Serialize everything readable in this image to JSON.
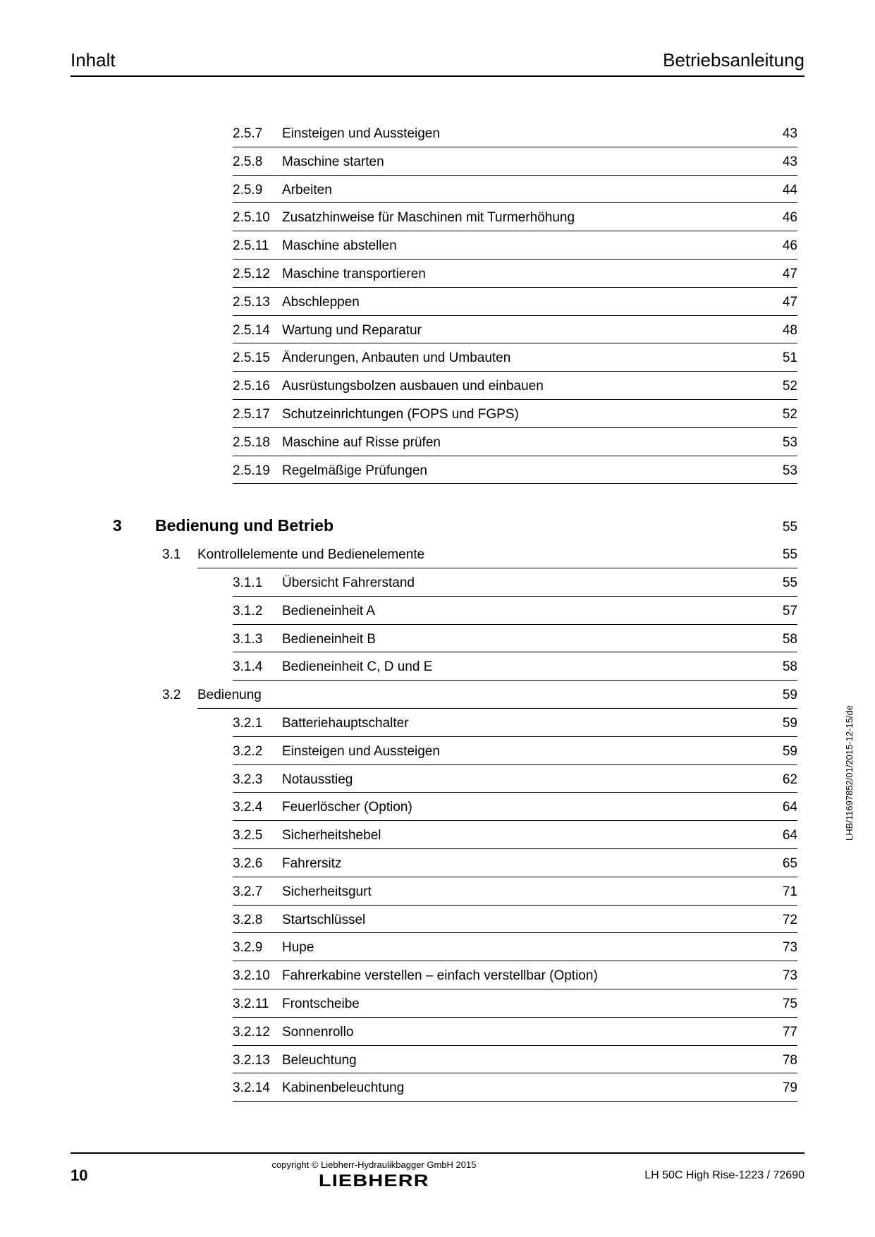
{
  "header": {
    "left": "Inhalt",
    "right": "Betriebsanleitung"
  },
  "toc": [
    {
      "type": "sub",
      "num": "2.5.7",
      "title": "Einsteigen und Aussteigen",
      "page": "43"
    },
    {
      "type": "sub",
      "num": "2.5.8",
      "title": "Maschine starten",
      "page": "43"
    },
    {
      "type": "sub",
      "num": "2.5.9",
      "title": "Arbeiten",
      "page": "44"
    },
    {
      "type": "sub",
      "num": "2.5.10",
      "title": "Zusatzhinweise für Maschinen mit Turmerhöhung",
      "page": "46"
    },
    {
      "type": "sub",
      "num": "2.5.11",
      "title": "Maschine abstellen",
      "page": "46"
    },
    {
      "type": "sub",
      "num": "2.5.12",
      "title": "Maschine transportieren",
      "page": "47"
    },
    {
      "type": "sub",
      "num": "2.5.13",
      "title": "Abschleppen",
      "page": "47"
    },
    {
      "type": "sub",
      "num": "2.5.14",
      "title": "Wartung und Reparatur",
      "page": "48"
    },
    {
      "type": "sub",
      "num": "2.5.15",
      "title": "Änderungen, Anbauten und Umbauten",
      "page": "51"
    },
    {
      "type": "sub",
      "num": "2.5.16",
      "title": "Ausrüstungsbolzen ausbauen und einbauen",
      "page": "52"
    },
    {
      "type": "sub",
      "num": "2.5.17",
      "title": "Schutzeinrichtungen (FOPS und FGPS)",
      "page": "52"
    },
    {
      "type": "sub",
      "num": "2.5.18",
      "title": "Maschine auf Risse prüfen",
      "page": "53"
    },
    {
      "type": "sub",
      "num": "2.5.19",
      "title": "Regelmäßige Prüfungen",
      "page": "53"
    },
    {
      "type": "chapter",
      "num": "3",
      "title": "Bedienung und Betrieb",
      "page": "55"
    },
    {
      "type": "section",
      "num": "3.1",
      "title": "Kontrollelemente und Bedienelemente",
      "page": "55"
    },
    {
      "type": "sub",
      "num": "3.1.1",
      "title": "Übersicht Fahrerstand",
      "page": "55"
    },
    {
      "type": "sub",
      "num": "3.1.2",
      "title": "Bedieneinheit A",
      "page": "57"
    },
    {
      "type": "sub",
      "num": "3.1.3",
      "title": "Bedieneinheit B",
      "page": "58"
    },
    {
      "type": "sub",
      "num": "3.1.4",
      "title": "Bedieneinheit C, D und E",
      "page": "58"
    },
    {
      "type": "section",
      "num": "3.2",
      "title": "Bedienung",
      "page": "59"
    },
    {
      "type": "sub",
      "num": "3.2.1",
      "title": "Batteriehauptschalter",
      "page": "59"
    },
    {
      "type": "sub",
      "num": "3.2.2",
      "title": "Einsteigen und Aussteigen",
      "page": "59"
    },
    {
      "type": "sub",
      "num": "3.2.3",
      "title": "Notausstieg",
      "page": "62"
    },
    {
      "type": "sub",
      "num": "3.2.4",
      "title": "Feuerlöscher (Option)",
      "page": "64"
    },
    {
      "type": "sub",
      "num": "3.2.5",
      "title": "Sicherheitshebel",
      "page": "64"
    },
    {
      "type": "sub",
      "num": "3.2.6",
      "title": "Fahrersitz",
      "page": "65"
    },
    {
      "type": "sub",
      "num": "3.2.7",
      "title": "Sicherheitsgurt",
      "page": "71"
    },
    {
      "type": "sub",
      "num": "3.2.8",
      "title": "Startschlüssel",
      "page": "72"
    },
    {
      "type": "sub",
      "num": "3.2.9",
      "title": "Hupe",
      "page": "73"
    },
    {
      "type": "sub",
      "num": "3.2.10",
      "title": "Fahrerkabine verstellen – einfach verstellbar (Option)",
      "page": "73"
    },
    {
      "type": "sub",
      "num": "3.2.11",
      "title": "Frontscheibe",
      "page": "75"
    },
    {
      "type": "sub",
      "num": "3.2.12",
      "title": "Sonnenrollo",
      "page": "77"
    },
    {
      "type": "sub",
      "num": "3.2.13",
      "title": "Beleuchtung",
      "page": "78"
    },
    {
      "type": "sub",
      "num": "3.2.14",
      "title": "Kabinenbeleuchtung",
      "page": "79"
    }
  ],
  "sideText": "LHB/11697852/01/2015-12-15/de",
  "footer": {
    "pageNumber": "10",
    "copyright": "copyright © Liebherr-Hydraulikbagger GmbH 2015",
    "logo": "LIEBHERR",
    "docId": "LH 50C High Rise-1223 / 72690"
  },
  "style": {
    "textColor": "#000000",
    "bgColor": "#ffffff",
    "ruleColor": "#000000",
    "bodyFontSize": 19,
    "chapterFontSize": 23,
    "headerFontSize": 26
  }
}
